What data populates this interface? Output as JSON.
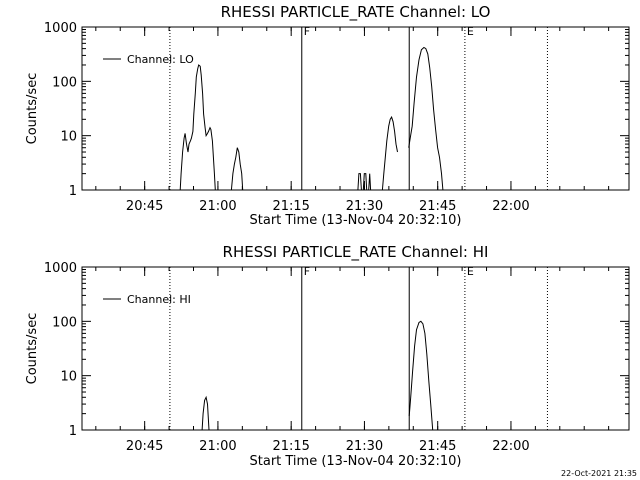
{
  "chart_data": [
    {
      "type": "line",
      "title": "RHESSI PARTICLE_RATE Channel: LO",
      "xlabel": "Start Time (13-Nov-04 20:32:10)",
      "ylabel": "Counts/sec",
      "x_unit": "minutes after 20:32:10",
      "xlim": [
        0,
        112
      ],
      "ylim": [
        1,
        1000
      ],
      "yscale": "log",
      "x_ticks": [
        {
          "value": 12.83,
          "label": "20:45"
        },
        {
          "value": 27.83,
          "label": "21:00"
        },
        {
          "value": 42.83,
          "label": "21:15"
        },
        {
          "value": 57.83,
          "label": "21:30"
        },
        {
          "value": 72.83,
          "label": "21:45"
        },
        {
          "value": 87.83,
          "label": "22:00"
        }
      ],
      "y_ticks": [
        {
          "value": 1,
          "label": "1"
        },
        {
          "value": 10,
          "label": "10"
        },
        {
          "value": 100,
          "label": "100"
        },
        {
          "value": 1000,
          "label": "1000"
        }
      ],
      "legend": {
        "position": "top-left",
        "entries": [
          "Channel: LO"
        ]
      },
      "markers": [
        {
          "x": 18.0,
          "style": "dotted",
          "label": ""
        },
        {
          "x": 45.0,
          "style": "solid",
          "label": "F"
        },
        {
          "x": 67.0,
          "style": "solid",
          "label": ""
        },
        {
          "x": 78.4,
          "style": "dotted",
          "label": "E"
        },
        {
          "x": 95.3,
          "style": "dotted",
          "label": ""
        }
      ],
      "series": [
        {
          "name": "Channel: LO",
          "segments": [
            [
              [
                20.1,
                1
              ],
              [
                20.3,
                2
              ],
              [
                20.6,
                5
              ],
              [
                20.9,
                9
              ],
              [
                21.1,
                11
              ],
              [
                21.4,
                7
              ],
              [
                21.7,
                5
              ],
              [
                21.9,
                7
              ],
              [
                22.2,
                8
              ],
              [
                22.4,
                9
              ],
              [
                22.7,
                12
              ],
              [
                22.9,
                25
              ],
              [
                23.2,
                60
              ],
              [
                23.4,
                120
              ],
              [
                23.7,
                170
              ],
              [
                23.9,
                200
              ],
              [
                24.2,
                190
              ],
              [
                24.4,
                130
              ],
              [
                24.7,
                60
              ],
              [
                24.9,
                25
              ],
              [
                25.2,
                14
              ],
              [
                25.4,
                10
              ],
              [
                25.7,
                11
              ],
              [
                25.9,
                12
              ],
              [
                26.2,
                14
              ],
              [
                26.4,
                13
              ],
              [
                26.7,
                8
              ],
              [
                26.9,
                4
              ],
              [
                27.1,
                2
              ],
              [
                27.3,
                1
              ]
            ],
            [
              [
                30.6,
                1
              ],
              [
                30.9,
                2
              ],
              [
                31.2,
                3
              ],
              [
                31.5,
                4
              ],
              [
                31.8,
                6
              ],
              [
                32.1,
                5
              ],
              [
                32.4,
                3
              ],
              [
                32.7,
                2
              ],
              [
                32.9,
                1
              ]
            ],
            [
              [
                56.5,
                1
              ],
              [
                56.7,
                2
              ],
              [
                57.0,
                2
              ],
              [
                57.2,
                1
              ]
            ],
            [
              [
                57.6,
                1
              ],
              [
                57.8,
                2
              ],
              [
                58.1,
                2
              ],
              [
                58.3,
                1
              ]
            ],
            [
              [
                58.7,
                1
              ],
              [
                58.9,
                2
              ],
              [
                59.1,
                1
              ]
            ],
            [
              [
                61.5,
                1
              ],
              [
                61.8,
                2
              ],
              [
                62.1,
                4
              ],
              [
                62.4,
                8
              ],
              [
                62.8,
                15
              ],
              [
                63.1,
                20
              ],
              [
                63.4,
                22
              ],
              [
                63.7,
                18
              ],
              [
                64.0,
                12
              ],
              [
                64.3,
                7
              ],
              [
                64.6,
                5
              ]
            ],
            [
              [
                66.9,
                6
              ],
              [
                67.2,
                9
              ],
              [
                67.6,
                15
              ],
              [
                68.0,
                40
              ],
              [
                68.5,
                120
              ],
              [
                69.0,
                250
              ],
              [
                69.5,
                380
              ],
              [
                70.0,
                420
              ],
              [
                70.4,
                400
              ],
              [
                70.8,
                320
              ],
              [
                71.2,
                180
              ],
              [
                71.6,
                80
              ],
              [
                72.0,
                30
              ],
              [
                72.4,
                13
              ],
              [
                72.8,
                6
              ],
              [
                73.2,
                4
              ],
              [
                73.6,
                2
              ],
              [
                73.9,
                1
              ]
            ]
          ]
        }
      ]
    },
    {
      "type": "line",
      "title": "RHESSI PARTICLE_RATE Channel: HI",
      "xlabel": "Start Time (13-Nov-04 20:32:10)",
      "ylabel": "Counts/sec",
      "x_unit": "minutes after 20:32:10",
      "xlim": [
        0,
        112
      ],
      "ylim": [
        1,
        1000
      ],
      "yscale": "log",
      "x_ticks": [
        {
          "value": 12.83,
          "label": "20:45"
        },
        {
          "value": 27.83,
          "label": "21:00"
        },
        {
          "value": 42.83,
          "label": "21:15"
        },
        {
          "value": 57.83,
          "label": "21:30"
        },
        {
          "value": 72.83,
          "label": "21:45"
        },
        {
          "value": 87.83,
          "label": "22:00"
        }
      ],
      "y_ticks": [
        {
          "value": 1,
          "label": "1"
        },
        {
          "value": 10,
          "label": "10"
        },
        {
          "value": 100,
          "label": "100"
        },
        {
          "value": 1000,
          "label": "1000"
        }
      ],
      "legend": {
        "position": "top-left",
        "entries": [
          "Channel: HI"
        ]
      },
      "markers": [
        {
          "x": 18.0,
          "style": "dotted",
          "label": ""
        },
        {
          "x": 45.0,
          "style": "solid",
          "label": "F"
        },
        {
          "x": 67.0,
          "style": "solid",
          "label": ""
        },
        {
          "x": 78.4,
          "style": "dotted",
          "label": "E"
        },
        {
          "x": 95.3,
          "style": "dotted",
          "label": ""
        }
      ],
      "series": [
        {
          "name": "Channel: HI",
          "segments": [
            [
              [
                24.6,
                1
              ],
              [
                24.8,
                2
              ],
              [
                25.1,
                3.5
              ],
              [
                25.4,
                4
              ],
              [
                25.7,
                3
              ],
              [
                26.0,
                1
              ]
            ],
            [
              [
                67.0,
                1.8
              ],
              [
                67.3,
                4
              ],
              [
                67.7,
                12
              ],
              [
                68.1,
                35
              ],
              [
                68.5,
                70
              ],
              [
                69.0,
                95
              ],
              [
                69.4,
                100
              ],
              [
                69.8,
                90
              ],
              [
                70.2,
                60
              ],
              [
                70.6,
                25
              ],
              [
                71.0,
                8
              ],
              [
                71.4,
                3
              ],
              [
                71.8,
                1
              ]
            ]
          ]
        }
      ]
    }
  ],
  "timestamp": "22-Oct-2021 21:35"
}
